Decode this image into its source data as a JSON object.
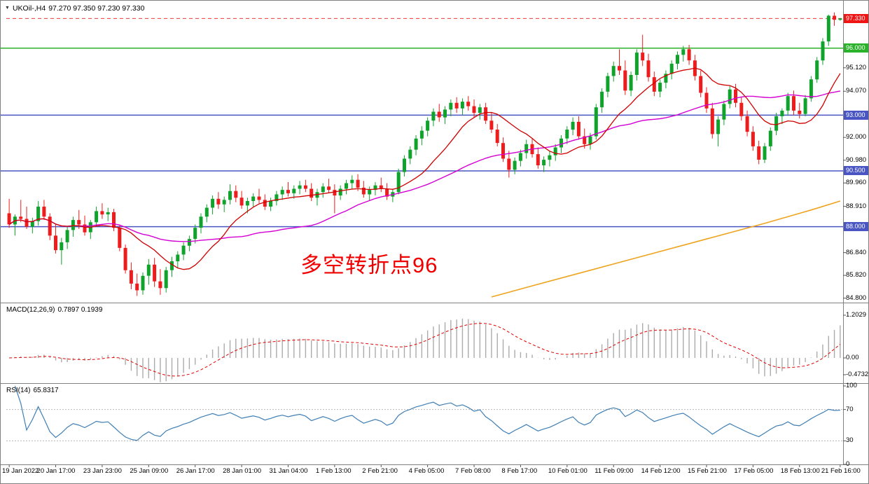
{
  "window": {
    "symbol": "UKOil-,H4",
    "ohlc_text": "97.270 97.350 97.230 97.330"
  },
  "colors": {
    "bull": "#0fa32b",
    "bear": "#ee1c1c",
    "ma_fast": "#cf0000",
    "ma_slow": "#d400d4",
    "ma_long": "#eea31c",
    "hline_blue": "#4a55c4",
    "hline_green": "#2ab22a",
    "price_badge_bg": "#f01515",
    "macd_hist": "#ababab",
    "macd_signal": "#e00000",
    "rsi_line": "#3f7fb5",
    "rsi_levels": "#b8b8b8",
    "panel_border": "#808080",
    "text": "#000000"
  },
  "chart_data": {
    "type": "candlestick",
    "symbol": "UKOil-",
    "timeframe": "H4",
    "title": "UKOil-,H4",
    "current_ohlc": {
      "open": 97.27,
      "high": 97.35,
      "low": 97.23,
      "close": 97.33
    },
    "y_range": [
      84.6,
      98.0
    ],
    "y_ticks": [
      {
        "label": "95.120",
        "value": 95.12
      },
      {
        "label": "94.070",
        "value": 94.07
      },
      {
        "label": "92.000",
        "value": 92.0
      },
      {
        "label": "90.980",
        "value": 90.98
      },
      {
        "label": "89.960",
        "value": 89.96
      },
      {
        "label": "88.910",
        "value": 88.91
      },
      {
        "label": "86.840",
        "value": 86.84
      },
      {
        "label": "85.820",
        "value": 85.82
      },
      {
        "label": "84.800",
        "value": 84.8
      }
    ],
    "h_lines": [
      {
        "label": "96.000",
        "value": 96.0,
        "style": "green"
      },
      {
        "label": "93.000",
        "value": 93.0,
        "style": "blue"
      },
      {
        "label": "90.500",
        "value": 90.5,
        "style": "blue"
      },
      {
        "label": "88.000",
        "value": 88.0,
        "style": "blue"
      }
    ],
    "price_badge": {
      "label": "97.330",
      "value": 97.33
    },
    "annotation": {
      "text": "多空转折点96"
    },
    "x_labels": [
      {
        "label": "19 Jan 2022",
        "bar": 0
      },
      {
        "label": "20 Jan 17:00",
        "bar": 8
      },
      {
        "label": "23 Jan 23:00",
        "bar": 16
      },
      {
        "label": "25 Jan 09:00",
        "bar": 24
      },
      {
        "label": "26 Jan 17:00",
        "bar": 32
      },
      {
        "label": "28 Jan 01:00",
        "bar": 40
      },
      {
        "label": "31 Jan 04:00",
        "bar": 48
      },
      {
        "label": "1 Feb 13:00",
        "bar": 56
      },
      {
        "label": "2 Feb 21:00",
        "bar": 64
      },
      {
        "label": "4 Feb 05:00",
        "bar": 72
      },
      {
        "label": "7 Feb 08:00",
        "bar": 80
      },
      {
        "label": "8 Feb 17:00",
        "bar": 88
      },
      {
        "label": "10 Feb 01:00",
        "bar": 96
      },
      {
        "label": "11 Feb 09:00",
        "bar": 104
      },
      {
        "label": "14 Feb 12:00",
        "bar": 112
      },
      {
        "label": "15 Feb 21:00",
        "bar": 120
      },
      {
        "label": "17 Feb 05:00",
        "bar": 128
      },
      {
        "label": "18 Feb 13:00",
        "bar": 136
      },
      {
        "label": "21 Feb 16:00",
        "bar": 143
      }
    ],
    "candles": [
      [
        88.6,
        89.25,
        87.95,
        88.1
      ],
      [
        88.1,
        88.55,
        87.6,
        88.45
      ],
      [
        88.45,
        89.2,
        88.2,
        88.35
      ],
      [
        88.35,
        88.9,
        87.9,
        88.0
      ],
      [
        88.0,
        88.4,
        87.7,
        88.25
      ],
      [
        88.25,
        89.15,
        88.05,
        88.9
      ],
      [
        88.9,
        89.2,
        88.3,
        88.45
      ],
      [
        88.45,
        88.6,
        87.4,
        87.6
      ],
      [
        87.6,
        88.1,
        86.8,
        86.95
      ],
      [
        86.95,
        87.5,
        86.3,
        87.3
      ],
      [
        87.3,
        88.0,
        87.0,
        87.85
      ],
      [
        87.85,
        88.45,
        87.55,
        88.3
      ],
      [
        88.3,
        88.75,
        87.9,
        88.1
      ],
      [
        88.1,
        88.5,
        87.6,
        87.75
      ],
      [
        87.75,
        88.3,
        87.45,
        88.2
      ],
      [
        88.2,
        88.9,
        88.0,
        88.7
      ],
      [
        88.7,
        89.05,
        88.35,
        88.55
      ],
      [
        88.55,
        88.85,
        88.25,
        88.65
      ],
      [
        88.65,
        88.8,
        87.8,
        87.95
      ],
      [
        87.95,
        88.1,
        86.9,
        87.05
      ],
      [
        87.05,
        87.2,
        85.9,
        86.05
      ],
      [
        86.05,
        86.4,
        85.2,
        85.45
      ],
      [
        85.45,
        85.9,
        84.9,
        85.15
      ],
      [
        85.15,
        85.95,
        84.95,
        85.8
      ],
      [
        85.8,
        86.55,
        85.4,
        86.3
      ],
      [
        86.3,
        86.6,
        85.3,
        85.55
      ],
      [
        85.55,
        86.1,
        84.95,
        85.25
      ],
      [
        85.25,
        86.2,
        85.05,
        86.05
      ],
      [
        86.05,
        86.65,
        85.75,
        86.45
      ],
      [
        86.45,
        86.9,
        86.15,
        86.75
      ],
      [
        86.75,
        87.3,
        86.5,
        87.15
      ],
      [
        87.15,
        87.6,
        86.9,
        87.45
      ],
      [
        87.45,
        88.1,
        87.25,
        87.95
      ],
      [
        87.95,
        88.6,
        87.7,
        88.45
      ],
      [
        88.45,
        89.0,
        88.2,
        88.85
      ],
      [
        88.85,
        89.4,
        88.55,
        89.25
      ],
      [
        89.25,
        89.55,
        88.8,
        89.0
      ],
      [
        89.0,
        89.35,
        88.65,
        89.2
      ],
      [
        89.2,
        89.9,
        89.0,
        89.6
      ],
      [
        89.6,
        89.85,
        89.1,
        89.3
      ],
      [
        89.3,
        89.6,
        88.8,
        88.95
      ],
      [
        88.95,
        89.3,
        88.6,
        89.15
      ],
      [
        89.15,
        89.5,
        88.9,
        89.35
      ],
      [
        89.35,
        89.7,
        89.05,
        89.2
      ],
      [
        89.2,
        89.45,
        88.75,
        88.9
      ],
      [
        88.9,
        89.3,
        88.7,
        89.15
      ],
      [
        89.15,
        89.6,
        88.95,
        89.45
      ],
      [
        89.45,
        89.8,
        89.2,
        89.65
      ],
      [
        89.65,
        90.0,
        89.35,
        89.5
      ],
      [
        89.5,
        89.85,
        89.25,
        89.7
      ],
      [
        89.7,
        90.05,
        89.45,
        89.85
      ],
      [
        89.85,
        90.1,
        89.55,
        89.7
      ],
      [
        89.7,
        89.95,
        89.15,
        89.3
      ],
      [
        89.3,
        89.7,
        88.95,
        89.55
      ],
      [
        89.55,
        89.95,
        89.3,
        89.8
      ],
      [
        89.8,
        90.15,
        89.5,
        89.65
      ],
      [
        89.65,
        89.9,
        88.6,
        89.4
      ],
      [
        89.4,
        89.85,
        89.2,
        89.7
      ],
      [
        89.7,
        90.1,
        89.45,
        89.95
      ],
      [
        89.95,
        90.3,
        89.7,
        90.1
      ],
      [
        90.1,
        90.35,
        89.6,
        89.75
      ],
      [
        89.75,
        90.05,
        89.3,
        89.45
      ],
      [
        89.45,
        89.8,
        89.15,
        89.65
      ],
      [
        89.65,
        90.0,
        89.4,
        89.85
      ],
      [
        89.85,
        90.2,
        89.55,
        89.7
      ],
      [
        89.7,
        89.95,
        89.2,
        89.35
      ],
      [
        89.35,
        89.7,
        89.1,
        89.55
      ],
      [
        89.55,
        90.6,
        89.45,
        90.45
      ],
      [
        90.45,
        91.2,
        90.25,
        91.05
      ],
      [
        91.05,
        91.6,
        90.8,
        91.45
      ],
      [
        91.45,
        92.1,
        91.2,
        91.95
      ],
      [
        91.95,
        92.5,
        91.65,
        92.3
      ],
      [
        92.3,
        92.9,
        92.05,
        92.75
      ],
      [
        92.75,
        93.3,
        92.5,
        93.15
      ],
      [
        93.15,
        93.5,
        92.7,
        92.9
      ],
      [
        92.9,
        93.4,
        92.6,
        93.25
      ],
      [
        93.25,
        93.7,
        92.95,
        93.55
      ],
      [
        93.55,
        93.8,
        93.1,
        93.3
      ],
      [
        93.3,
        93.75,
        93.0,
        93.6
      ],
      [
        93.6,
        93.85,
        93.2,
        93.4
      ],
      [
        93.4,
        93.7,
        92.9,
        93.1
      ],
      [
        93.1,
        93.5,
        92.8,
        93.35
      ],
      [
        93.35,
        93.55,
        92.6,
        92.75
      ],
      [
        92.75,
        93.1,
        92.2,
        92.35
      ],
      [
        92.35,
        92.6,
        91.6,
        91.75
      ],
      [
        91.75,
        92.0,
        90.9,
        91.05
      ],
      [
        91.05,
        91.4,
        90.2,
        90.55
      ],
      [
        90.55,
        91.1,
        90.35,
        90.95
      ],
      [
        90.95,
        91.45,
        90.7,
        91.3
      ],
      [
        91.3,
        91.9,
        91.05,
        91.7
      ],
      [
        91.7,
        91.95,
        91.1,
        91.25
      ],
      [
        91.25,
        91.55,
        90.6,
        90.75
      ],
      [
        90.75,
        91.15,
        90.45,
        91.0
      ],
      [
        91.0,
        91.4,
        90.7,
        91.2
      ],
      [
        91.2,
        91.7,
        90.95,
        91.55
      ],
      [
        91.55,
        92.1,
        91.3,
        91.95
      ],
      [
        91.95,
        92.5,
        91.7,
        92.35
      ],
      [
        92.35,
        92.9,
        92.1,
        92.7
      ],
      [
        92.7,
        92.95,
        91.9,
        92.05
      ],
      [
        92.05,
        92.4,
        91.5,
        91.7
      ],
      [
        91.7,
        92.2,
        91.45,
        92.05
      ],
      [
        92.05,
        93.5,
        91.9,
        93.35
      ],
      [
        93.35,
        94.2,
        93.1,
        94.05
      ],
      [
        94.05,
        94.9,
        93.8,
        94.75
      ],
      [
        94.75,
        95.4,
        94.5,
        95.2
      ],
      [
        95.2,
        95.95,
        94.8,
        95.0
      ],
      [
        95.0,
        95.45,
        93.9,
        94.1
      ],
      [
        94.1,
        94.95,
        93.85,
        94.8
      ],
      [
        94.8,
        95.95,
        94.55,
        95.8
      ],
      [
        95.8,
        96.6,
        95.2,
        95.45
      ],
      [
        95.45,
        95.75,
        94.5,
        94.7
      ],
      [
        94.7,
        94.95,
        93.85,
        94.05
      ],
      [
        94.05,
        94.6,
        93.8,
        94.45
      ],
      [
        94.45,
        95.0,
        94.2,
        94.85
      ],
      [
        94.85,
        95.45,
        94.6,
        95.3
      ],
      [
        95.3,
        95.85,
        95.05,
        95.7
      ],
      [
        95.7,
        96.1,
        95.4,
        95.95
      ],
      [
        95.95,
        96.15,
        95.25,
        95.45
      ],
      [
        95.45,
        95.7,
        94.55,
        94.75
      ],
      [
        94.75,
        95.0,
        93.8,
        94.0
      ],
      [
        94.0,
        94.25,
        93.1,
        93.3
      ],
      [
        93.3,
        93.55,
        91.95,
        92.15
      ],
      [
        92.15,
        92.95,
        91.6,
        92.8
      ],
      [
        92.8,
        93.65,
        92.55,
        93.5
      ],
      [
        93.5,
        94.3,
        93.3,
        94.15
      ],
      [
        94.15,
        94.4,
        93.35,
        93.55
      ],
      [
        93.55,
        93.8,
        92.75,
        92.95
      ],
      [
        92.95,
        93.2,
        92.05,
        92.25
      ],
      [
        92.25,
        92.5,
        91.4,
        91.6
      ],
      [
        91.6,
        91.85,
        90.8,
        91.0
      ],
      [
        91.0,
        91.75,
        90.85,
        91.6
      ],
      [
        91.6,
        92.45,
        91.4,
        92.3
      ],
      [
        92.3,
        93.1,
        92.1,
        92.95
      ],
      [
        92.95,
        93.3,
        92.6,
        93.2
      ],
      [
        93.2,
        94.0,
        93.0,
        93.85
      ],
      [
        93.85,
        94.1,
        93.0,
        93.2
      ],
      [
        93.2,
        93.55,
        92.85,
        93.05
      ],
      [
        93.05,
        93.9,
        92.95,
        93.75
      ],
      [
        93.75,
        94.75,
        93.6,
        94.6
      ],
      [
        94.6,
        95.6,
        94.45,
        95.45
      ],
      [
        95.45,
        96.45,
        95.25,
        96.3
      ],
      [
        96.3,
        97.5,
        96.1,
        97.45
      ],
      [
        97.45,
        97.6,
        97.0,
        97.27
      ],
      [
        97.27,
        97.35,
        97.23,
        97.33
      ]
    ],
    "indicators": {
      "ma_fast_period": 12,
      "ma_slow_period": 34,
      "ma_long_anchors": [
        [
          83,
          84.85
        ],
        [
          90,
          85.35
        ],
        [
          100,
          86.05
        ],
        [
          110,
          86.75
        ],
        [
          120,
          87.45
        ],
        [
          130,
          88.15
        ],
        [
          138,
          88.75
        ],
        [
          143,
          89.15
        ]
      ],
      "macd": {
        "label": "MACD(12,26,9)",
        "value_text": "0.7897 0.1939",
        "fast": 12,
        "slow": 26,
        "signal": 9,
        "axis_ticks": [
          {
            "label": "1.2029",
            "value": 1.2029
          },
          {
            "label": "0.00",
            "value": 0
          },
          {
            "label": "-0.4732",
            "value": -0.4732
          }
        ]
      },
      "rsi": {
        "label": "RSI(14)",
        "value_text": "65.8317",
        "period": 14,
        "levels": [
          70,
          30
        ],
        "axis_ticks": [
          {
            "label": "100",
            "value": 100
          },
          {
            "label": "70",
            "value": 70
          },
          {
            "label": "30",
            "value": 30
          },
          {
            "label": "0",
            "value": 0
          }
        ]
      }
    }
  }
}
